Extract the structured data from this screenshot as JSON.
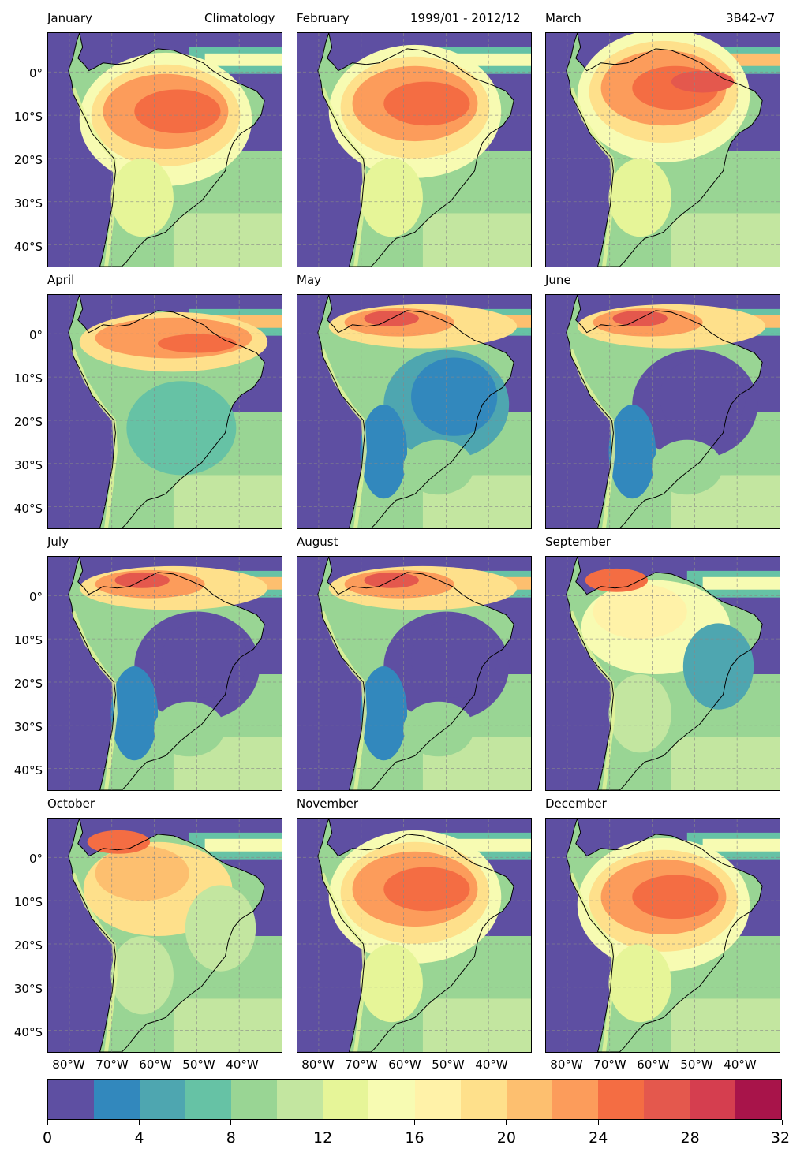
{
  "figure": {
    "header_left_extra": "Climatology",
    "header_center_extra": "1999/01 - 2012/12",
    "header_right_extra": "3B42-v7"
  },
  "panels": [
    {
      "month": "January",
      "pattern": "amazon-south"
    },
    {
      "month": "February",
      "pattern": "amazon-central"
    },
    {
      "month": "March",
      "pattern": "amazon-north"
    },
    {
      "month": "April",
      "pattern": "equatorial"
    },
    {
      "month": "May",
      "pattern": "north-band"
    },
    {
      "month": "June",
      "pattern": "north-band-dry"
    },
    {
      "month": "July",
      "pattern": "north-band-dry"
    },
    {
      "month": "August",
      "pattern": "north-band-dry"
    },
    {
      "month": "September",
      "pattern": "transition"
    },
    {
      "month": "October",
      "pattern": "transition-wet"
    },
    {
      "month": "November",
      "pattern": "amazon-central"
    },
    {
      "month": "December",
      "pattern": "amazon-south"
    }
  ],
  "lat_labels": [
    "0°",
    "10°S",
    "20°S",
    "30°S",
    "40°S"
  ],
  "lon_labels": [
    "80°W",
    "70°W",
    "60°W",
    "50°W",
    "40°W"
  ],
  "colorbar": {
    "min": 0,
    "max": 32,
    "step": 2,
    "tick_labels": [
      "0",
      "4",
      "8",
      "12",
      "16",
      "20",
      "24",
      "28",
      "32"
    ],
    "colors": [
      "#5e4fa2",
      "#3288bd",
      "#4ea6b0",
      "#66c2a5",
      "#99d594",
      "#c3e6a0",
      "#e6f598",
      "#f7fbb2",
      "#fff2a8",
      "#fee08b",
      "#fdbf6f",
      "#fc9c5b",
      "#f46d43",
      "#e4584d",
      "#d53e4f",
      "#a8144a"
    ]
  }
}
